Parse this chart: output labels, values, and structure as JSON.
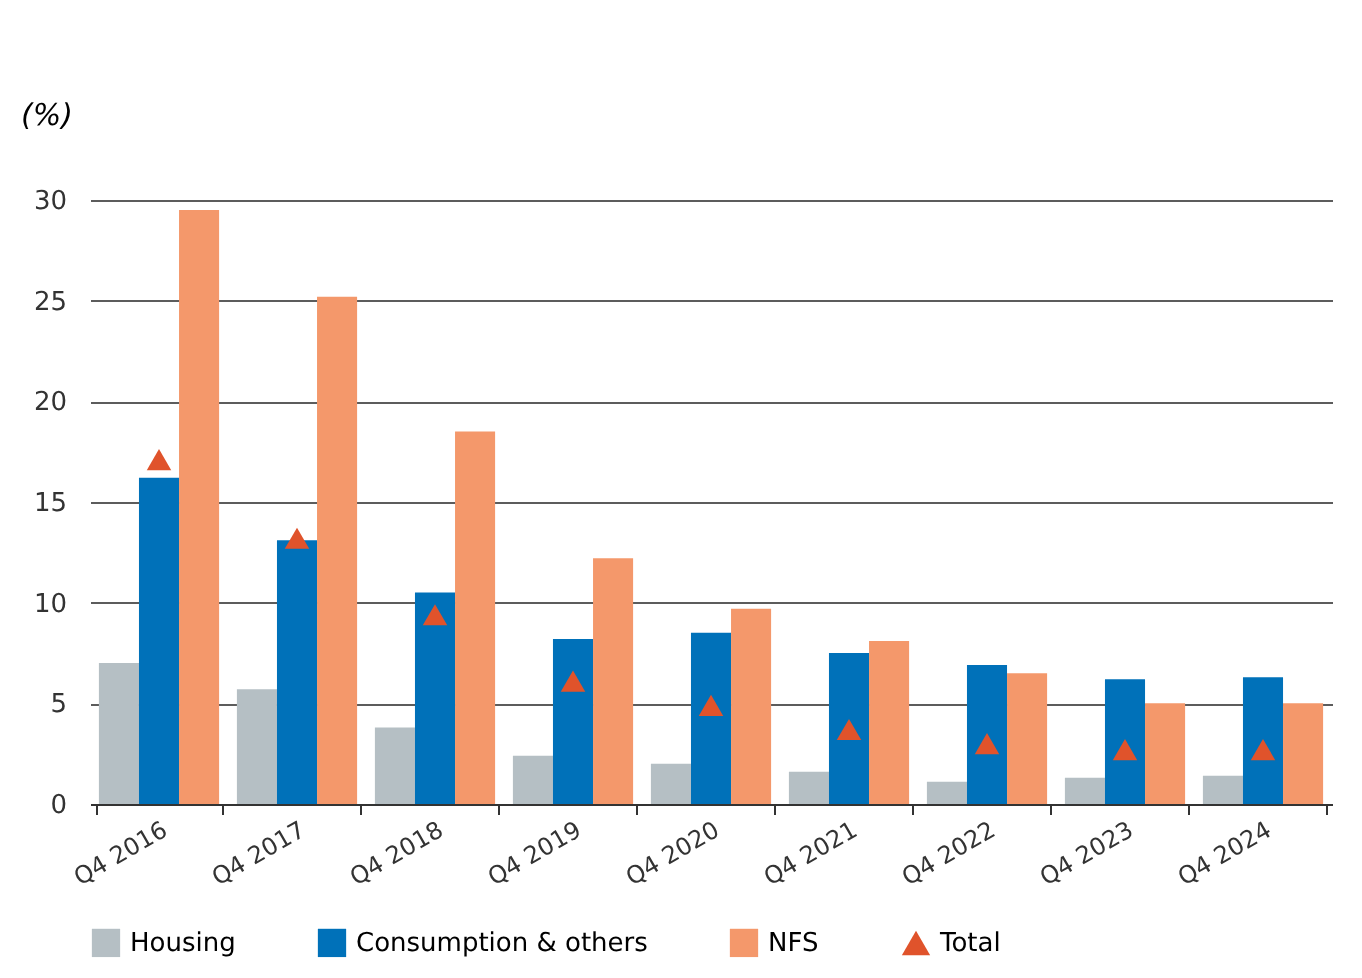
{
  "chart_data": {
    "type": "bar",
    "ylabel": "(%)",
    "categories": [
      "Q4 2016",
      "Q4 2017",
      "Q4 2018",
      "Q4 2019",
      "Q4 2020",
      "Q4 2021",
      "Q4 2022",
      "Q4 2023",
      "Q4 2024"
    ],
    "series": [
      {
        "name": "Housing",
        "color": "#b5bfc4",
        "values": [
          7.0,
          5.7,
          3.8,
          2.4,
          2.0,
          1.6,
          1.1,
          1.3,
          1.4
        ]
      },
      {
        "name": "Consumption & others",
        "color": "#0071b9",
        "values": [
          16.2,
          13.1,
          10.5,
          8.2,
          8.5,
          7.5,
          6.9,
          6.2,
          6.3
        ]
      },
      {
        "name": "NFS",
        "color": "#f4986b",
        "values": [
          29.5,
          25.2,
          18.5,
          12.2,
          9.7,
          8.1,
          6.5,
          5.0,
          5.0
        ]
      },
      {
        "name": "Total",
        "color": "#e0532b",
        "type": "scatter",
        "marker": "triangle",
        "values": [
          17.1,
          13.2,
          9.4,
          6.1,
          4.9,
          3.7,
          3.0,
          2.7,
          2.7
        ]
      }
    ],
    "ylim": [
      0,
      30
    ],
    "yticks": [
      0,
      5,
      10,
      15,
      20,
      25,
      30
    ],
    "grid": "y",
    "legend": "bottom"
  }
}
